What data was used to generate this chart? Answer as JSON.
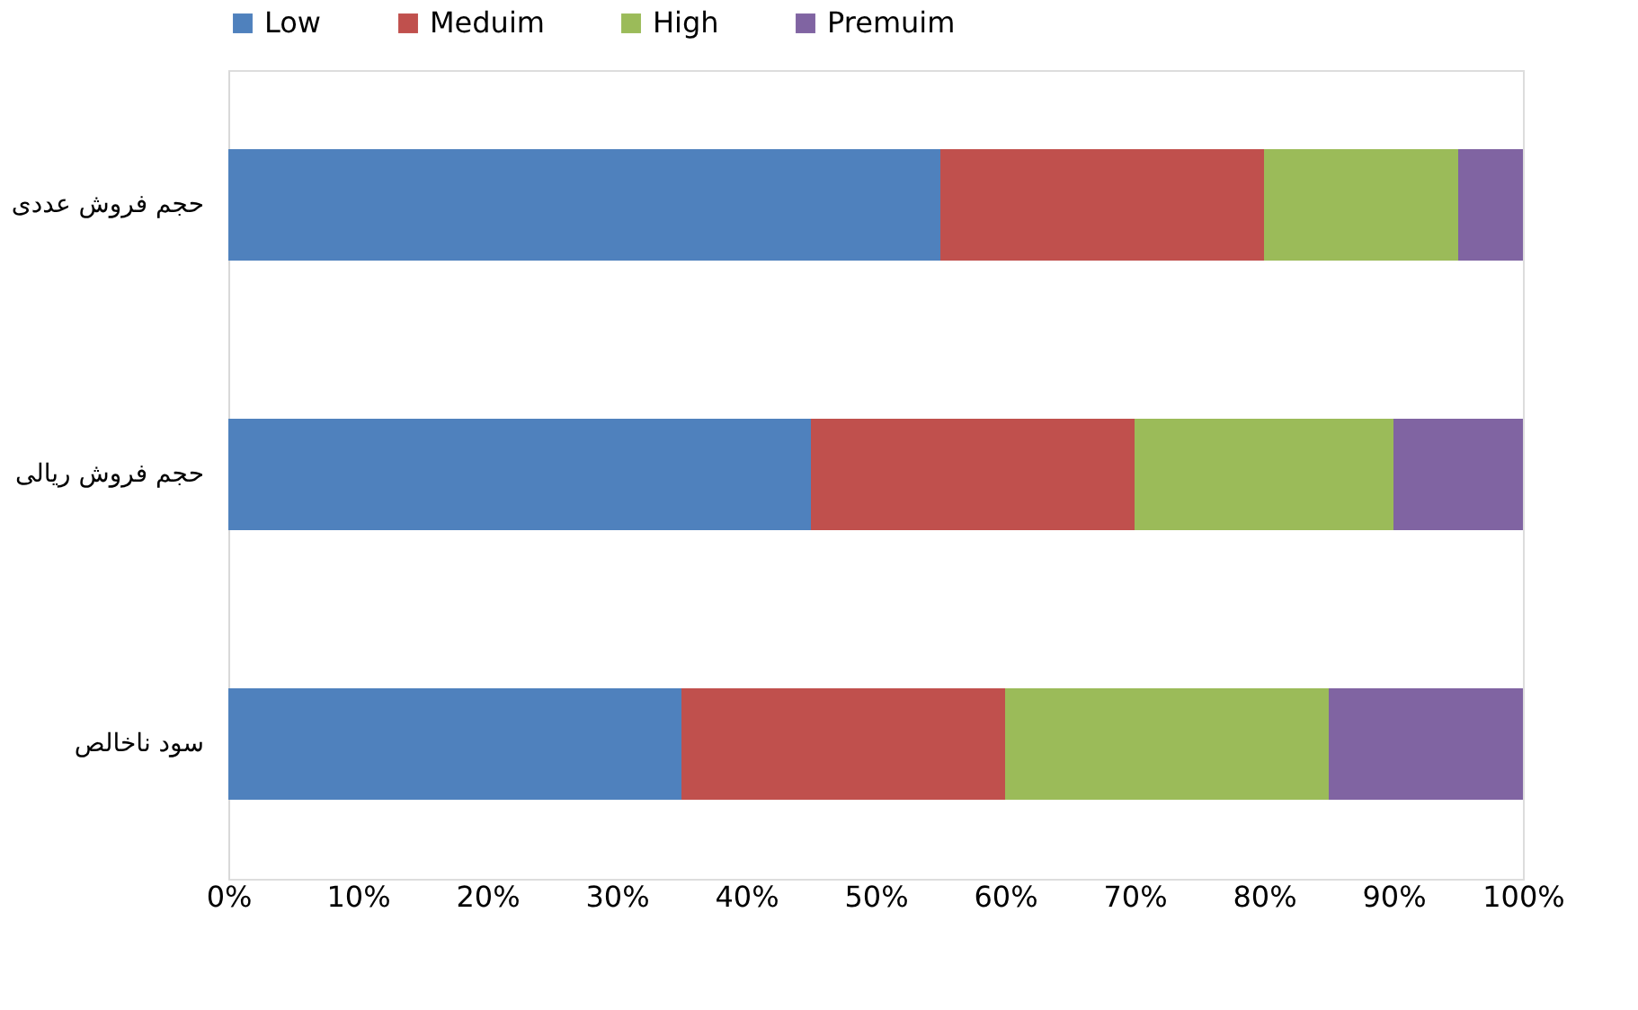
{
  "chart_data": {
    "type": "bar",
    "orientation": "horizontal",
    "stacked": true,
    "categories": [
      "حجم فروش عددی",
      "حجم فروش ریالی",
      "سود ناخالص"
    ],
    "series": [
      {
        "name": "Low",
        "color": "#4f81bd",
        "values": [
          55,
          45,
          35
        ]
      },
      {
        "name": "Meduim",
        "color": "#c0504d",
        "values": [
          25,
          25,
          25
        ]
      },
      {
        "name": "High",
        "color": "#9bbb59",
        "values": [
          15,
          20,
          25
        ]
      },
      {
        "name": "Premuim",
        "color": "#8064a2",
        "values": [
          5,
          10,
          15
        ]
      }
    ],
    "xlim": [
      0,
      100
    ],
    "xticks": [
      {
        "value": 0,
        "label": "0%"
      },
      {
        "value": 10,
        "label": "10%"
      },
      {
        "value": 20,
        "label": "20%"
      },
      {
        "value": 30,
        "label": "30%"
      },
      {
        "value": 40,
        "label": "40%"
      },
      {
        "value": 50,
        "label": "50%"
      },
      {
        "value": 60,
        "label": "60%"
      },
      {
        "value": 70,
        "label": "70%"
      },
      {
        "value": 80,
        "label": "80%"
      },
      {
        "value": 90,
        "label": "90%"
      },
      {
        "value": 100,
        "label": "100%"
      }
    ],
    "grid": false,
    "legend": "top"
  }
}
